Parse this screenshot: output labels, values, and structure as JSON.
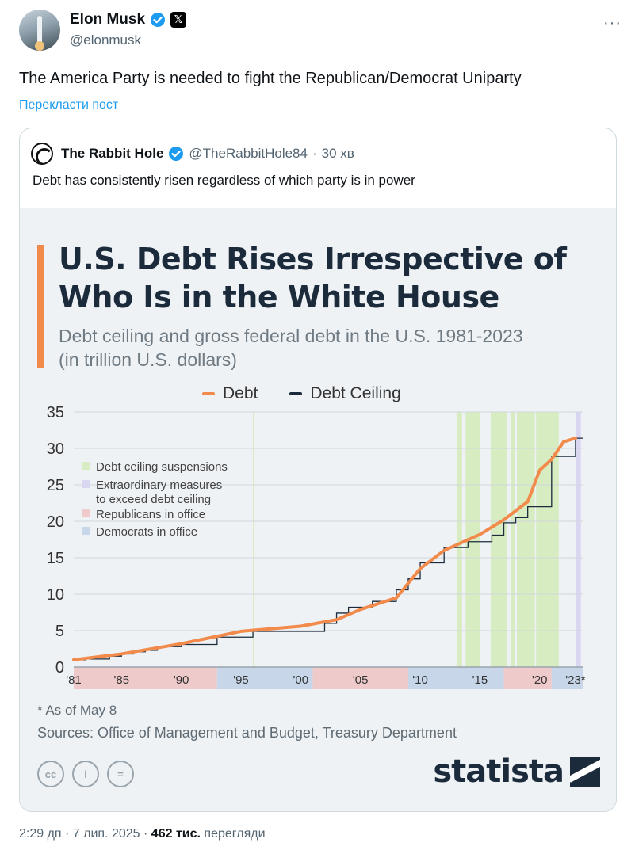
{
  "author": {
    "name": "Elon Musk",
    "handle": "@elonmusk",
    "verified_icon": "verified-badge-icon",
    "affiliation_icon": "x-logo-icon",
    "affiliation_glyph": "𝕏",
    "more_glyph": "···"
  },
  "tweet": {
    "text": "The America Party is needed to fight the Republican/Democrat Uniparty",
    "translate_label": "Перекласти пост"
  },
  "quote": {
    "name": "The Rabbit Hole",
    "handle": "@TheRabbitHole84",
    "separator": "·",
    "time": "30 хв",
    "text": "Debt has consistently risen regardless of which party is in power"
  },
  "chart_card": {
    "title_line1": "U.S. Debt Rises Irrespective of",
    "title_line2": "Who Is in the White House",
    "subtitle_line1": "Debt ceiling and gross federal debt in the U.S. 1981-2023",
    "subtitle_line2": "(in trillion U.S. dollars)",
    "footnote": "* As of May 8",
    "sources": "Sources: Office of Management and Budget, Treasury Department",
    "cc_labels": [
      "cc",
      "i",
      "="
    ],
    "brand": "statista",
    "colors": {
      "accent": "#f28a4b",
      "debt": "#f28a4b",
      "ceiling": "#1b2b3c",
      "suspension": "#d8ecc2",
      "extraordinary": "#d9d6f2",
      "republican": "#efcaca",
      "democrat": "#c7d7e9"
    }
  },
  "chart_data": {
    "type": "line",
    "series": [
      {
        "name": "Debt",
        "x": [
          1981,
          1985,
          1990,
          1995,
          2000,
          2003,
          2005,
          2008,
          2009,
          2010,
          2012,
          2015,
          2017,
          2019,
          2020,
          2021,
          2022,
          2023
        ],
        "values": [
          1.0,
          1.8,
          3.2,
          4.9,
          5.6,
          6.5,
          7.9,
          9.5,
          11.5,
          13.5,
          16.0,
          18.2,
          20.2,
          22.7,
          27.0,
          28.5,
          30.9,
          31.4
        ]
      },
      {
        "name": "Debt Ceiling",
        "step": true,
        "x": [
          1981,
          1982,
          1984,
          1985,
          1986,
          1987,
          1988,
          1989,
          1990,
          1993,
          1996,
          2002,
          2003,
          2004,
          2006,
          2007,
          2008,
          2009,
          2010,
          2011,
          2012,
          2014,
          2016,
          2017,
          2018,
          2019,
          2021,
          2023
        ],
        "values": [
          1.0,
          1.1,
          1.5,
          1.8,
          2.1,
          2.3,
          2.8,
          2.8,
          3.1,
          4.1,
          4.9,
          6.0,
          7.4,
          8.2,
          9.0,
          9.0,
          10.6,
          12.1,
          14.3,
          14.3,
          16.4,
          17.2,
          18.1,
          19.8,
          20.5,
          22.0,
          28.9,
          31.4
        ]
      }
    ],
    "legend": [
      "Debt",
      "Debt Ceiling"
    ],
    "inner_legend": [
      "Debt ceiling suspensions",
      "Extraordinary measures to exceed debt ceiling",
      "Republicans in office",
      "Democrats in office"
    ],
    "ylim": [
      0,
      35
    ],
    "yticks": [
      0,
      5,
      10,
      15,
      20,
      25,
      30,
      35
    ],
    "xlim": [
      1981,
      2023.6
    ],
    "xtick_labels": [
      "'81",
      "'85",
      "'90",
      "'95",
      "'00",
      "'05",
      "'10",
      "'15",
      "'20",
      "'23*"
    ],
    "xtick_values": [
      1981,
      1985,
      1990,
      1995,
      2000,
      2005,
      2010,
      2015,
      2020,
      2023
    ],
    "suspensions": [
      [
        1996.0,
        1996.1
      ],
      [
        2013.1,
        2013.5
      ],
      [
        2013.8,
        2015.0
      ],
      [
        2015.9,
        2017.3
      ],
      [
        2017.6,
        2017.9
      ],
      [
        2018.1,
        2019.6
      ],
      [
        2019.7,
        2021.6
      ]
    ],
    "extraordinary": [
      [
        2023.0,
        2023.45
      ]
    ],
    "administrations": [
      {
        "party": "Republican",
        "from": 1981,
        "to": 1993
      },
      {
        "party": "Democrat",
        "from": 1993,
        "to": 2001
      },
      {
        "party": "Republican",
        "from": 2001,
        "to": 2009
      },
      {
        "party": "Democrat",
        "from": 2009,
        "to": 2017
      },
      {
        "party": "Republican",
        "from": 2017,
        "to": 2021
      },
      {
        "party": "Democrat",
        "from": 2021,
        "to": 2023.6
      }
    ],
    "grid": true,
    "legend_position": "top"
  },
  "meta": {
    "time_date": "2:29 дп · 7 лип. 2025 · ",
    "views_count": "462 тис.",
    "views_label": "перегляди"
  }
}
